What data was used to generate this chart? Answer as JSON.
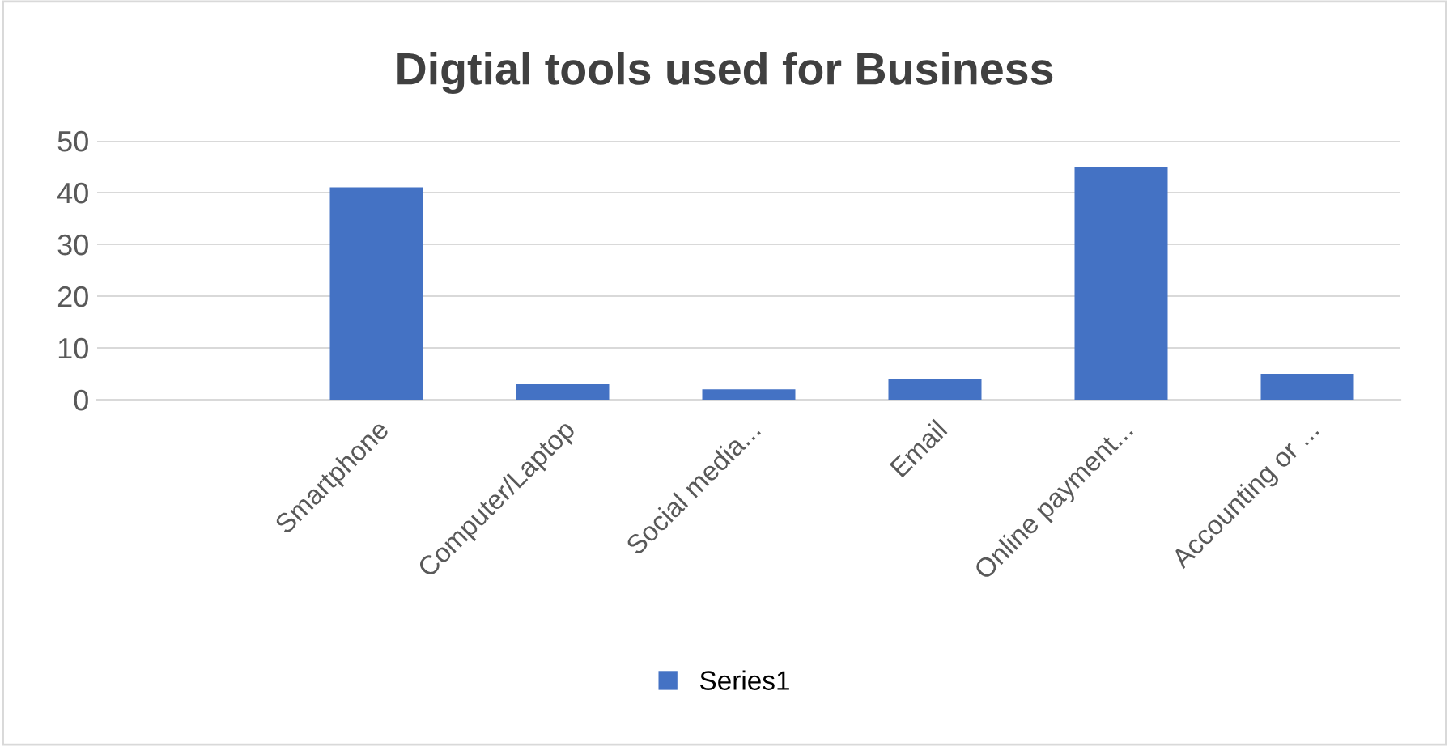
{
  "chart_data": {
    "type": "bar",
    "title": "Digtial tools used for Business",
    "categories": [
      null,
      "Smartphone",
      "Computer/Laptop",
      "Social media...",
      "Email",
      "Online payment...",
      "Accounting or ..."
    ],
    "series": [
      {
        "name": "Series1",
        "color": "#4472c4",
        "values": [
          null,
          41,
          3,
          2,
          4,
          45,
          5
        ]
      }
    ],
    "ylim": [
      0,
      50
    ],
    "yticks": [
      0,
      10,
      20,
      30,
      40,
      50
    ],
    "grid": "y",
    "legend": "bottom"
  }
}
